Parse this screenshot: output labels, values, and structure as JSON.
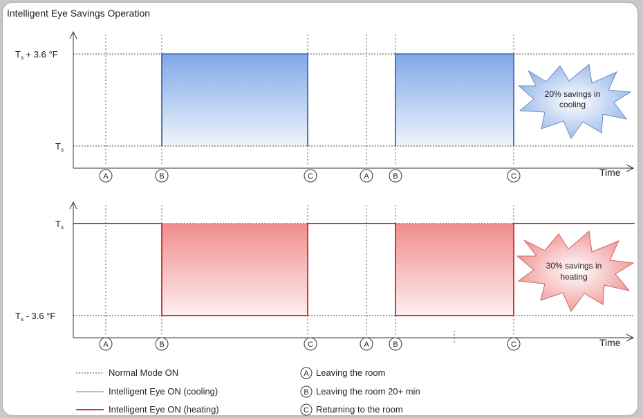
{
  "title": "Intelligent Eye Savings Operation",
  "cooling": {
    "ylabel_top_base": "T",
    "ylabel_top_sub": "s",
    "ylabel_top_suffix": " + 3.6 °F",
    "ylabel_bottom_base": "T",
    "ylabel_bottom_sub": "s",
    "x_axis_label": "Time",
    "callout_line1": "20% savings in",
    "callout_line2": "cooling",
    "markers": [
      "A",
      "B",
      "C",
      "A",
      "B",
      "C"
    ]
  },
  "heating": {
    "ylabel_top_base": "T",
    "ylabel_top_sub": "s",
    "ylabel_bottom_base": "T",
    "ylabel_bottom_sub": "s",
    "ylabel_bottom_suffix": " - 3.6 °F",
    "x_axis_label": "Time",
    "callout_line1": "30% savings in",
    "callout_line2": "heating",
    "markers": [
      "A",
      "B",
      "C",
      "A",
      "B",
      "C"
    ]
  },
  "legend": {
    "normal": "Normal Mode ON",
    "cooling": "Intelligent Eye ON (cooling)",
    "heating": "Intelligent Eye ON (heating)",
    "a_symbol": "A",
    "a_text": "Leaving the room",
    "b_symbol": "B",
    "b_text": "Leaving the room 20+ min",
    "c_symbol": "C",
    "c_text": "Returning to the room"
  },
  "colors": {
    "cooling_line": "#4f7fc4",
    "cooling_fill_top": "#7fa8e8",
    "heating_line": "#d43a3a",
    "heating_fill_top": "#f08d8d",
    "normal_line": "#444444",
    "legend_cooling_line": "#a9c5e0"
  }
}
